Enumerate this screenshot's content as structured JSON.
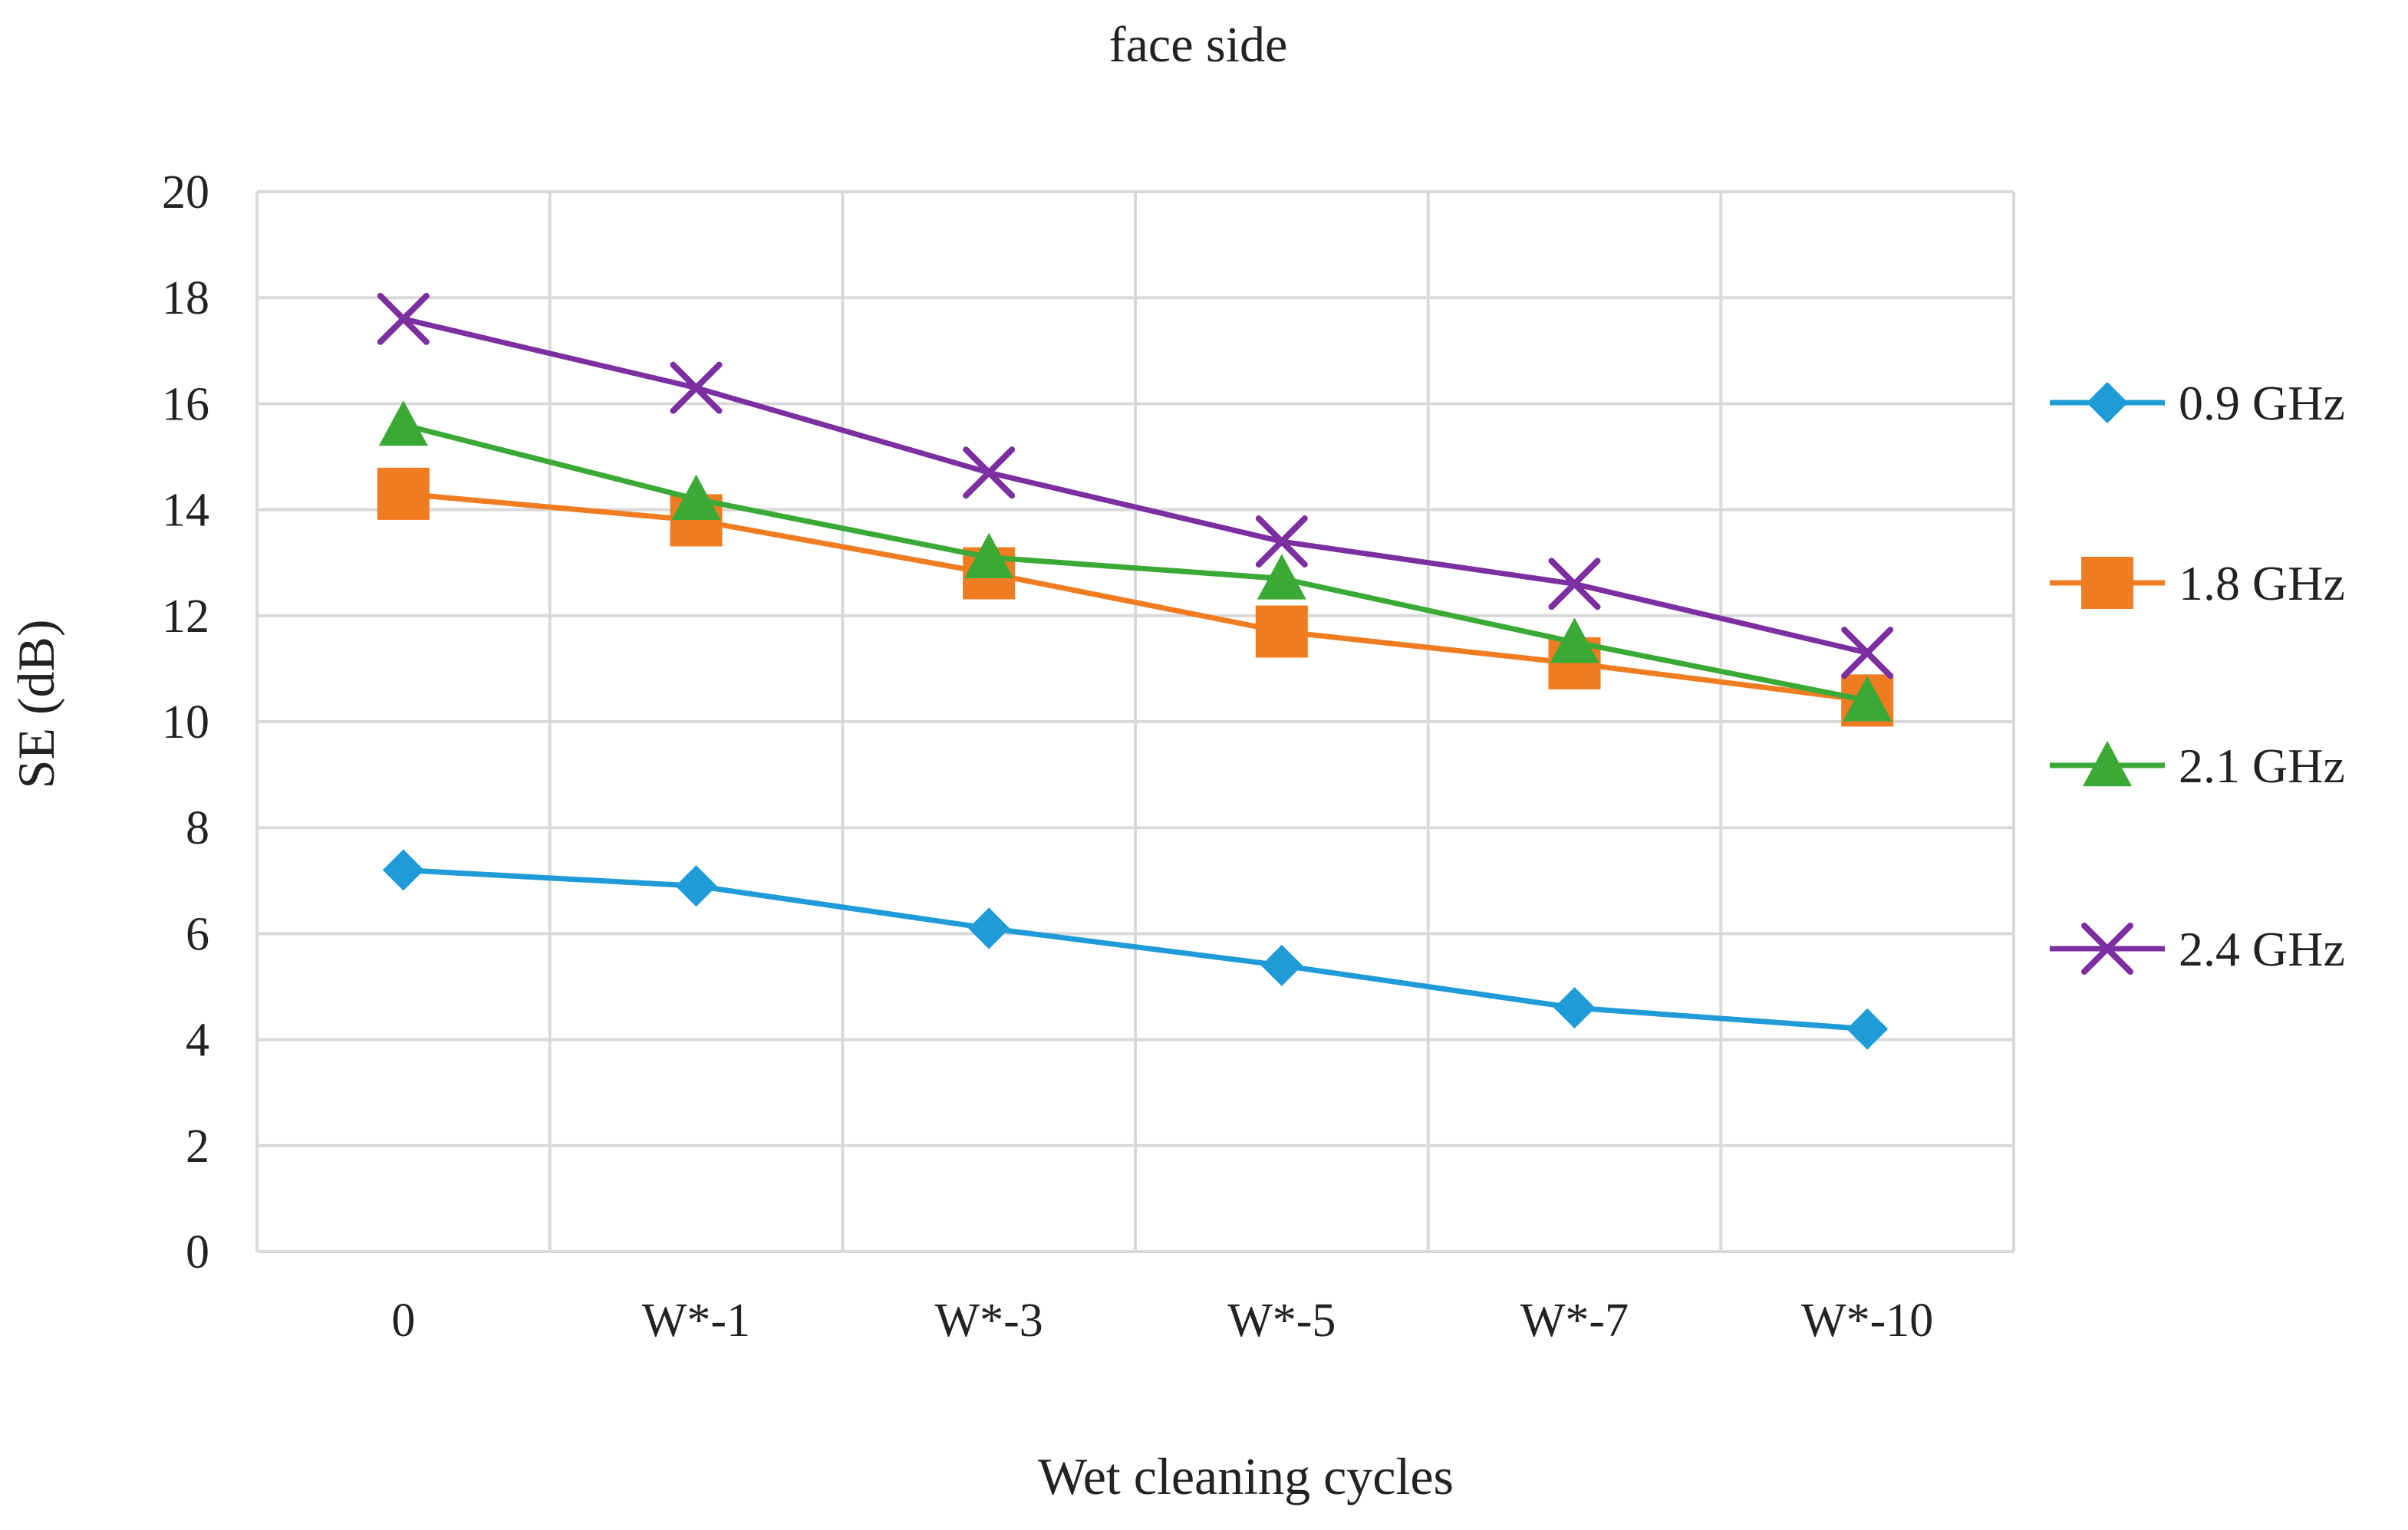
{
  "chart_data": {
    "type": "line",
    "title": "face side",
    "xlabel": "Wet cleaning cycles",
    "ylabel": "SE (dB)",
    "ylim": [
      0,
      20
    ],
    "yticks": [
      0,
      2,
      4,
      6,
      8,
      10,
      12,
      14,
      16,
      18,
      20
    ],
    "categories": [
      "0",
      "W*-1",
      "W*-3",
      "W*-5",
      "W*-7",
      "W*-10"
    ],
    "grid": true,
    "legend_position": "right",
    "series": [
      {
        "name": "0.9 GHz",
        "color": "#1f9bd7",
        "marker": "diamond",
        "values": [
          7.2,
          6.9,
          6.1,
          5.4,
          4.6,
          4.2
        ]
      },
      {
        "name": "1.8 GHz",
        "color": "#f07c22",
        "marker": "square",
        "values": [
          14.3,
          13.8,
          12.8,
          11.7,
          11.1,
          10.4
        ]
      },
      {
        "name": "2.1 GHz",
        "color": "#3aa935",
        "marker": "triangle",
        "values": [
          15.6,
          14.2,
          13.1,
          12.7,
          11.5,
          10.4
        ]
      },
      {
        "name": "2.4 GHz",
        "color": "#7b2fa0",
        "marker": "x",
        "values": [
          17.6,
          16.3,
          14.7,
          13.4,
          12.6,
          11.3
        ]
      }
    ]
  }
}
